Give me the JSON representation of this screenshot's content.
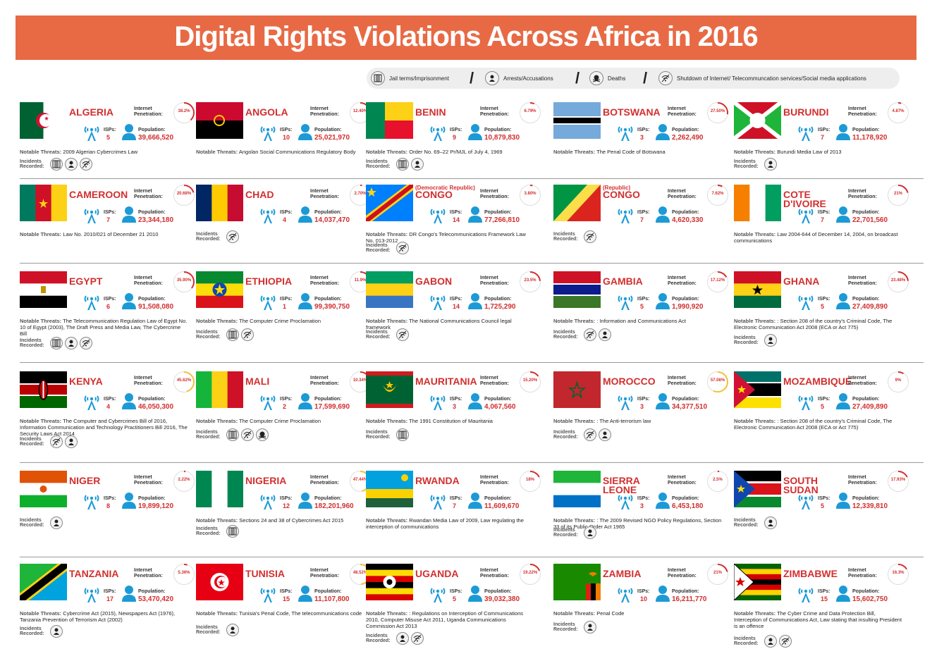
{
  "title": "Digital Rights Violations Across Africa in 2016",
  "legend": {
    "jail": "Jail terms/Imprisonment",
    "arrest": "Arrests/Accusations",
    "death": "Deaths",
    "shutdown": "Shutdown of Internet/ Telecommuncation services/Social media applications"
  },
  "labels": {
    "internet": "Internet\nPenetration:",
    "isps": "ISPs:",
    "population": "Population:",
    "threats": "Notable Threats:",
    "incidents": "Incidents\nRecorded:"
  },
  "countries": [
    {
      "name": "ALGERIA",
      "pen": "38.2%",
      "pen_frac": 0.382,
      "isps": "5",
      "pop": "39,666,520",
      "threats": "2009 Algerian Cybercrimes Law",
      "inc": [
        "jail",
        "arrest",
        "shutdown"
      ]
    },
    {
      "name": "ANGOLA",
      "pen": "12.40%",
      "pen_frac": 0.124,
      "isps": "10",
      "pop": "25,021,970",
      "threats": "Angolan Social Communications Regulatory Body",
      "inc": []
    },
    {
      "name": "BENIN",
      "pen": "6.79%",
      "pen_frac": 0.0679,
      "isps": "9",
      "pop": "10,879,830",
      "threats": "Order No. 69–22 Pr/MJL of July 4, 1969",
      "inc": [
        "jail",
        "arrest"
      ]
    },
    {
      "name": "BOTSWANA",
      "pen": "27.50%",
      "pen_frac": 0.275,
      "isps": "3",
      "pop": "2,262,490",
      "threats": "The Penal Code of Botswana",
      "inc": []
    },
    {
      "name": "BURUNDI",
      "pen": "4.87%",
      "pen_frac": 0.0487,
      "isps": "7",
      "pop": "11,178,920",
      "threats": "Burundi Media Law of 2013",
      "inc": [
        "arrest"
      ]
    },
    {
      "name": "CAMEROON",
      "pen": "20.68%",
      "pen_frac": 0.2068,
      "isps": "7",
      "pop": "23,344,180",
      "threats": "Law No. 2010/021 of December 21 2010",
      "inc": []
    },
    {
      "name": "CHAD",
      "pen": "2.70%",
      "pen_frac": 0.027,
      "isps": "4",
      "pop": "14,037,470",
      "threats": "",
      "inc": [
        "shutdown"
      ]
    },
    {
      "name": "CONGO",
      "pre": "(Democratic Republic)",
      "pen": "3.80%",
      "pen_frac": 0.038,
      "isps": "14",
      "pop": "77,266,810",
      "threats": "DR Congo's Telecommunications Framework Law No. 013-2012",
      "inc": [
        "shutdown"
      ]
    },
    {
      "name": "CONGO",
      "pre": "(Republic)",
      "pen": "7.62%",
      "pen_frac": 0.0762,
      "isps": "7",
      "pop": "4,620,330",
      "threats": "",
      "inc": [
        "shutdown"
      ]
    },
    {
      "name": "COTE\nD'IVOIRE",
      "pen": "21%",
      "pen_frac": 0.21,
      "isps": "7",
      "pop": "22,701,560",
      "threats": "Law 2004-644 of December 14, 2004, on broadcast communications",
      "inc": []
    },
    {
      "name": "EGYPT",
      "pen": "35.90%",
      "pen_frac": 0.359,
      "isps": "6",
      "pop": "91,508,080",
      "threats": "The Telecommunication Regulation Law of Egypt No. 10 of Egypt (2003), The Draft Press and Media Law, The Cybercrime Bill",
      "inc": [
        "jail",
        "arrest",
        "shutdown"
      ]
    },
    {
      "name": "ETHIOPIA",
      "pen": "11.9%",
      "pen_frac": 0.119,
      "isps": "1",
      "pop": "99,390,750",
      "threats": "The Computer Crime Proclamation",
      "inc": [
        "jail",
        "shutdown"
      ]
    },
    {
      "name": "GABON",
      "pen": "23.5%",
      "pen_frac": 0.235,
      "isps": "14",
      "pop": "1,725,290",
      "threats": "The National Communications Council legal framework",
      "inc": [
        "shutdown"
      ]
    },
    {
      "name": "GAMBIA",
      "pen": "17.12%",
      "pen_frac": 0.1712,
      "isps": "5",
      "pop": "1,990,920",
      "threats": ": Information and Communications Act",
      "inc": [
        "shutdown",
        "arrest"
      ]
    },
    {
      "name": "GHANA",
      "pen": "23.48%",
      "pen_frac": 0.2348,
      "isps": "5",
      "pop": "27,409,890",
      "threats": ": Section 208 of the country's Criminal Code, The Electronic Communication Act 2008 (ECA or Act 775)",
      "inc": [
        "arrest"
      ]
    },
    {
      "name": "KENYA",
      "pen": "45.62%",
      "pen_frac": 0.4562,
      "isps": "4",
      "pop": "46,050,300",
      "threats": "The Computer and Cybercrimes Bill of 2016, Information Communication and Technology Practitioners Bill 2016, The Security Laws Act 2014",
      "inc": [
        "shutdown",
        "arrest"
      ]
    },
    {
      "name": "MALI",
      "pen": "10.34%",
      "pen_frac": 0.1034,
      "isps": "2",
      "pop": "17,599,690",
      "threats": "The Computer Crime Proclamation",
      "inc": [
        "jail",
        "shutdown",
        "death"
      ]
    },
    {
      "name": "MAURITANIA",
      "pen": "15.20%",
      "pen_frac": 0.152,
      "isps": "3",
      "pop": "4,067,560",
      "threats": "The 1991 Constitution of Mauritania",
      "inc": [
        "jail"
      ]
    },
    {
      "name": "MOROCCO",
      "pen": "57.08%",
      "pen_frac": 0.5708,
      "isps": "3",
      "pop": "34,377,510",
      "threats": ": The Anti-terrorism law",
      "inc": [
        "shutdown",
        "arrest"
      ]
    },
    {
      "name": "MOZAMBIQUE",
      "pen": "9%",
      "pen_frac": 0.09,
      "isps": "5",
      "pop": "27,409,890",
      "threats": ": Section 208 of the country's Criminal Code, The Electronic Communication Act 2008 (ECA or Act 775)",
      "inc": []
    },
    {
      "name": "NIGER",
      "pen": "2.22%",
      "pen_frac": 0.0222,
      "isps": "8",
      "pop": "19,899,120",
      "threats": "",
      "inc": [
        "arrest"
      ]
    },
    {
      "name": "NIGERIA",
      "pen": "47.44%",
      "pen_frac": 0.4744,
      "isps": "12",
      "pop": "182,201,960",
      "threats": "Sections 24 and 38 of Cybercrimes Act 2015",
      "inc": [
        "jail"
      ]
    },
    {
      "name": "RWANDA",
      "pen": "18%",
      "pen_frac": 0.18,
      "isps": "7",
      "pop": "11,609,670",
      "threats": "Rwandan Media Law of 2009, Law regulating the interception of communications",
      "inc": []
    },
    {
      "name": "SIERRA\nLEONE",
      "pen": "2.5%",
      "pen_frac": 0.025,
      "isps": "3",
      "pop": "6,453,180",
      "threats": ": The 2009 Revised NGO Policy Regulations, Section 33 of its Public Order Act 1965",
      "inc": [
        "arrest"
      ]
    },
    {
      "name": "SOUTH\nSUDAN",
      "pen": "17.93%",
      "pen_frac": 0.1793,
      "isps": "5",
      "pop": "12,339,810",
      "threats": "",
      "inc": [
        "arrest"
      ]
    },
    {
      "name": "TANZANIA",
      "pen": "5.36%",
      "pen_frac": 0.0536,
      "isps": "17",
      "pop": "53,470,420",
      "threats": "Cybercrime Act (2015), Newspapers Act (1976), Tanzania Prevention of Terrorism Act (2002)",
      "inc": [
        "arrest"
      ]
    },
    {
      "name": "TUNISIA",
      "pen": "48.52%",
      "pen_frac": 0.4852,
      "isps": "15",
      "pop": "11,107,800",
      "threats": "Tunisia's Penal Code, The telecommunications code",
      "inc": [
        "arrest"
      ]
    },
    {
      "name": "UGANDA",
      "pen": "19.22%",
      "pen_frac": 0.1922,
      "isps": "5",
      "pop": "39,032,380",
      "threats": ": Regulations on Interception of Communications 2010, Computer Misuse Act 2011, Uganda Communications Commission Act 2013",
      "inc": [
        "arrest",
        "shutdown"
      ]
    },
    {
      "name": "ZAMBIA",
      "pen": "21%",
      "pen_frac": 0.21,
      "isps": "10",
      "pop": "16,211,770",
      "threats": "Penal Code",
      "inc": [
        "arrest"
      ]
    },
    {
      "name": "ZIMBABWE",
      "pen": "16.3%",
      "pen_frac": 0.163,
      "isps": "15",
      "pop": "15,602,750",
      "threats": "The Cyber Crime and Data Protection Bill, Interception of Communications Act, Law stating that insulting President is an offence",
      "inc": [
        "arrest",
        "shutdown"
      ]
    }
  ]
}
